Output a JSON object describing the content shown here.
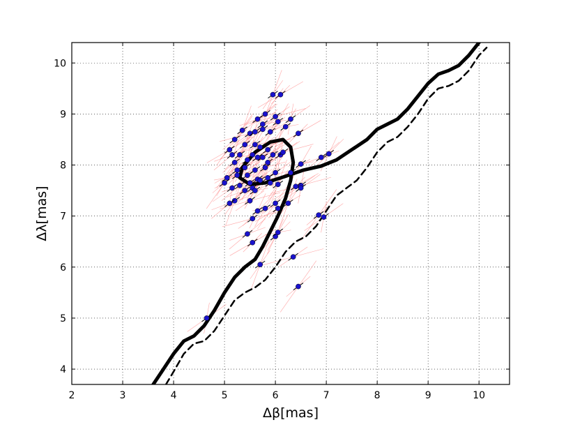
{
  "chart_data": {
    "type": "scatter",
    "xlabel": "Δβ[mas]",
    "ylabel": "Δλ[mas]",
    "xlim": [
      2.0,
      10.6
    ],
    "ylim": [
      3.7,
      10.4
    ],
    "xticks": [
      2,
      3,
      4,
      5,
      6,
      7,
      8,
      9,
      10
    ],
    "yticks": [
      4,
      5,
      6,
      7,
      8,
      9,
      10
    ],
    "grid": true,
    "legend": "none",
    "colors": {
      "points": "#1a12cc",
      "point_edge": "#000000",
      "error_bars": "#ff8080",
      "solid_curve": "#000000",
      "dashed_curve": "#000000"
    },
    "series": [
      {
        "kind": "scatter",
        "x": [
          5.6,
          6.1,
          5.95,
          6.0,
          5.8,
          6.3,
          5.65,
          5.75,
          6.05,
          6.45,
          5.35,
          5.5,
          5.2,
          5.6,
          5.75,
          5.9,
          6.2,
          5.1,
          5.4,
          5.7,
          5.85,
          6.1,
          5.15,
          5.3,
          5.55,
          5.75,
          5.95,
          6.15,
          5.2,
          5.45,
          5.65,
          5.85,
          6.5,
          5.25,
          5.4,
          5.6,
          5.8,
          6.0,
          6.9,
          7.05,
          5.05,
          5.25,
          5.45,
          5.65,
          5.85,
          6.3,
          5.3,
          5.5,
          5.7,
          5.9,
          6.05,
          6.5,
          5.0,
          5.15,
          5.4,
          5.55,
          5.6,
          6.4,
          5.2,
          5.5,
          6.0,
          6.5,
          5.1,
          5.65,
          5.8,
          6.05,
          6.25,
          5.55,
          6.85,
          6.95,
          5.45,
          6.0,
          6.05,
          5.55,
          5.7,
          6.35,
          6.45,
          4.65
        ],
        "y": [
          8.4,
          9.38,
          9.38,
          8.95,
          9.0,
          8.9,
          8.9,
          8.8,
          8.85,
          8.62,
          8.68,
          8.62,
          8.5,
          8.65,
          8.7,
          8.65,
          8.75,
          8.3,
          8.4,
          8.35,
          8.3,
          8.2,
          8.2,
          8.2,
          8.2,
          8.15,
          8.2,
          8.25,
          8.05,
          8.1,
          8.15,
          8.05,
          8.02,
          7.9,
          7.95,
          7.9,
          7.95,
          7.85,
          8.15,
          8.22,
          7.75,
          7.8,
          7.8,
          7.72,
          7.75,
          7.85,
          7.6,
          7.65,
          7.7,
          7.65,
          7.62,
          7.6,
          7.65,
          7.55,
          7.5,
          7.55,
          7.5,
          7.58,
          7.3,
          7.3,
          7.25,
          7.55,
          7.25,
          7.1,
          7.15,
          7.15,
          7.25,
          6.95,
          7.02,
          6.98,
          6.65,
          6.6,
          6.68,
          6.48,
          6.05,
          6.2,
          5.62,
          5.0
        ]
      },
      {
        "kind": "line",
        "style": "solid",
        "x": [
          3.6,
          3.8,
          4.0,
          4.2,
          4.4,
          4.6,
          4.8,
          5.0,
          5.2,
          5.4,
          5.6,
          5.75,
          5.9,
          6.05,
          6.2,
          6.3,
          6.35,
          6.3,
          6.15,
          5.9,
          5.6,
          5.35,
          5.3,
          5.5,
          5.8,
          6.2,
          6.55,
          6.9,
          7.2,
          7.5,
          7.8,
          8.0,
          8.2,
          8.4,
          8.6,
          8.8,
          9.0,
          9.2,
          9.4,
          9.6,
          9.8,
          10.0
        ],
        "y": [
          3.7,
          4.0,
          4.3,
          4.55,
          4.65,
          4.85,
          5.15,
          5.5,
          5.8,
          6.0,
          6.15,
          6.4,
          6.7,
          7.0,
          7.35,
          7.7,
          8.05,
          8.35,
          8.5,
          8.45,
          8.25,
          7.95,
          7.75,
          7.62,
          7.65,
          7.78,
          7.9,
          7.98,
          8.1,
          8.3,
          8.5,
          8.7,
          8.8,
          8.9,
          9.1,
          9.35,
          9.6,
          9.78,
          9.85,
          9.95,
          10.15,
          10.4
        ]
      },
      {
        "kind": "line",
        "style": "dashed",
        "x": [
          3.85,
          4.0,
          4.2,
          4.4,
          4.6,
          4.8,
          5.0,
          5.2,
          5.4,
          5.6,
          5.8,
          6.0,
          6.2,
          6.4,
          6.6,
          6.8,
          7.0,
          7.2,
          7.4,
          7.6,
          7.8,
          8.0,
          8.2,
          8.4,
          8.6,
          8.8,
          9.0,
          9.2,
          9.4,
          9.6,
          9.8,
          10.0,
          10.15
        ],
        "y": [
          3.7,
          3.95,
          4.3,
          4.5,
          4.55,
          4.75,
          5.05,
          5.35,
          5.5,
          5.6,
          5.75,
          6.0,
          6.3,
          6.5,
          6.6,
          6.8,
          7.1,
          7.4,
          7.55,
          7.7,
          7.95,
          8.25,
          8.45,
          8.55,
          8.75,
          9.0,
          9.3,
          9.5,
          9.55,
          9.65,
          9.85,
          10.15,
          10.3
        ]
      }
    ]
  }
}
